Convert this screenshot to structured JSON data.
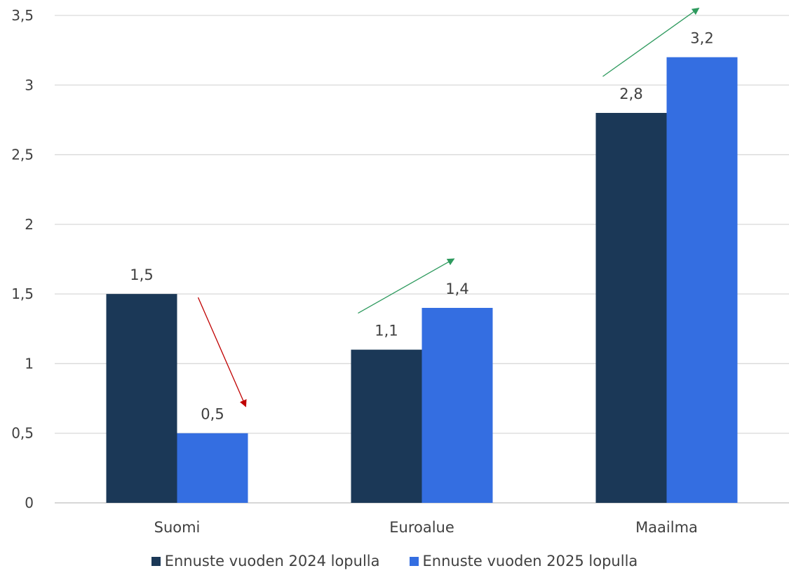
{
  "chart_data": {
    "type": "bar",
    "title": "",
    "xlabel": "",
    "ylabel": "",
    "categories": [
      "Suomi",
      "Euroalue",
      "Maailma"
    ],
    "series": [
      {
        "name": "Ennuste vuoden 2024 lopulla",
        "values": [
          1.5,
          1.1,
          2.8
        ],
        "labels": [
          "1,5",
          "1,1",
          "2,8"
        ],
        "color": "#1b3857"
      },
      {
        "name": "Ennuste vuoden 2025 lopulla",
        "values": [
          0.5,
          1.4,
          3.2
        ],
        "labels": [
          "0,5",
          "1,4",
          "3,2"
        ],
        "color": "#346ee1"
      }
    ],
    "ylim": [
      0,
      3.5
    ],
    "yticks": [
      0,
      0.5,
      1,
      1.5,
      2,
      2.5,
      3,
      3.5
    ],
    "ytick_labels": [
      "0",
      "0,5",
      "1",
      "1,5",
      "2",
      "2,5",
      "3",
      "3,5"
    ],
    "grid": true,
    "legend_position": "bottom",
    "annotations": [
      {
        "type": "arrow",
        "category": "Suomi",
        "direction": "down",
        "color": "#c00000"
      },
      {
        "type": "arrow",
        "category": "Euroalue",
        "direction": "up",
        "color": "#2e9a5e"
      },
      {
        "type": "arrow",
        "category": "Maailma",
        "direction": "up",
        "color": "#2e9a5e"
      }
    ]
  }
}
